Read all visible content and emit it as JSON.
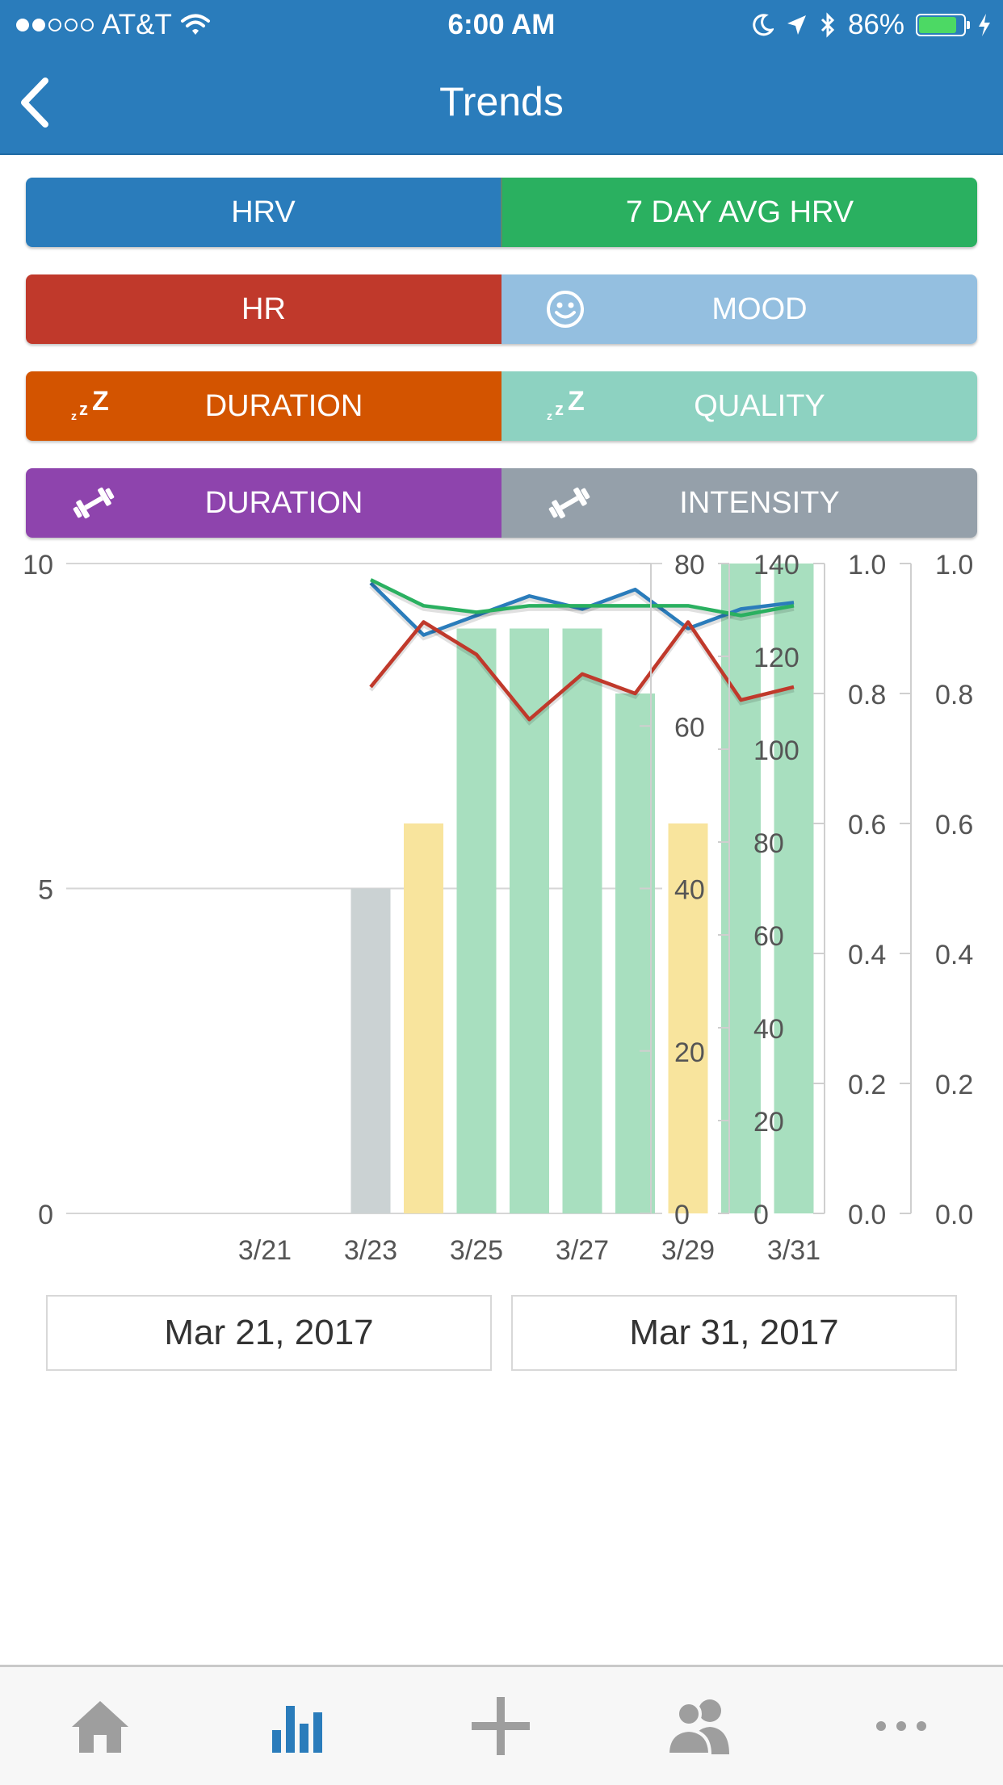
{
  "status_bar": {
    "carrier": "AT&T",
    "time": "6:00 AM",
    "battery": "86%",
    "battery_level": 0.86,
    "signal_bars_filled": 2,
    "signal_bars_total": 5
  },
  "nav": {
    "title": "Trends",
    "back_icon": "chevron-left-icon"
  },
  "toggles": [
    {
      "left": {
        "label": "HRV",
        "color": "#2a7cbb",
        "icon": ""
      },
      "right": {
        "label": "7 DAY AVG HRV",
        "color": "#2ab060",
        "icon": ""
      }
    },
    {
      "left": {
        "label": "HR",
        "color": "#c0392b",
        "icon": ""
      },
      "right": {
        "label": "MOOD",
        "color": "#94bfe0",
        "icon": "smiley-icon"
      }
    },
    {
      "left": {
        "label": "DURATION",
        "color": "#d35400",
        "icon": "sleep-zzz-icon"
      },
      "right": {
        "label": "QUALITY",
        "color": "#8dd2c1",
        "icon": "sleep-zzz-icon"
      }
    },
    {
      "left": {
        "label": "DURATION",
        "color": "#8e44ad",
        "icon": "dumbbell-icon"
      },
      "right": {
        "label": "INTENSITY",
        "color": "#95a0aa",
        "icon": "dumbbell-icon"
      }
    }
  ],
  "chart_data": {
    "type": "bar",
    "x": [
      "3/21",
      "3/22",
      "3/23",
      "3/24",
      "3/25",
      "3/26",
      "3/27",
      "3/28",
      "3/29",
      "3/30",
      "3/31"
    ],
    "x_tick_labels": [
      "3/21",
      "3/23",
      "3/25",
      "3/27",
      "3/29",
      "3/31"
    ],
    "y_axes": [
      {
        "ticks": [
          "0",
          "5",
          "10"
        ],
        "range": [
          0,
          10
        ]
      },
      {
        "ticks": [
          "0",
          "20",
          "40",
          "60",
          "80"
        ],
        "range": [
          0,
          80
        ]
      },
      {
        "ticks": [
          "0",
          "20",
          "40",
          "60",
          "80",
          "100",
          "120",
          "140"
        ],
        "range": [
          0,
          140
        ]
      },
      {
        "ticks": [
          "0.0",
          "0.2",
          "0.4",
          "0.6",
          "0.8",
          "1.0"
        ],
        "range": [
          0,
          1
        ]
      },
      {
        "ticks": [
          "0.0",
          "0.2",
          "0.4",
          "0.6",
          "0.8",
          "1.0"
        ],
        "range": [
          0,
          1
        ]
      }
    ],
    "bars": [
      {
        "x": "3/23",
        "value": 5,
        "color": "#cbd2d3"
      },
      {
        "x": "3/24",
        "value": 6,
        "color": "#f8e49d"
      },
      {
        "x": "3/25",
        "value": 9,
        "color": "#a8dfbf"
      },
      {
        "x": "3/26",
        "value": 9,
        "color": "#a8dfbf"
      },
      {
        "x": "3/27",
        "value": 9,
        "color": "#a8dfbf"
      },
      {
        "x": "3/28",
        "value": 8,
        "color": "#a8dfbf"
      },
      {
        "x": "3/29",
        "value": 6,
        "color": "#f8e49d"
      },
      {
        "x": "3/30",
        "value": 10,
        "color": "#a8dfbf"
      },
      {
        "x": "3/31",
        "value": 10,
        "color": "#a8dfbf"
      }
    ],
    "series": [
      {
        "axis": 0,
        "color": "#2a7cbb",
        "x": [
          "3/23",
          "3/24",
          "3/25",
          "3/26",
          "3/27",
          "3/28",
          "3/29",
          "3/30",
          "3/31"
        ],
        "values": [
          9.7,
          8.9,
          9.2,
          9.5,
          9.3,
          9.6,
          9.0,
          9.3,
          9.4
        ]
      },
      {
        "axis": 0,
        "color": "#2ab060",
        "x": [
          "3/23",
          "3/24",
          "3/25",
          "3/26",
          "3/27",
          "3/28",
          "3/29",
          "3/30",
          "3/31"
        ],
        "values": [
          9.75,
          9.35,
          9.25,
          9.35,
          9.35,
          9.35,
          9.35,
          9.2,
          9.35
        ]
      },
      {
        "axis": 0,
        "color": "#c0392b",
        "x": [
          "3/23",
          "3/24",
          "3/25",
          "3/26",
          "3/27",
          "3/28",
          "3/29",
          "3/30",
          "3/31"
        ],
        "values": [
          8.1,
          9.1,
          8.6,
          7.6,
          8.3,
          8.0,
          9.1,
          7.9,
          8.1
        ]
      }
    ],
    "grid": true,
    "legend": "none"
  },
  "date_range": {
    "start": "Mar 21, 2017",
    "end": "Mar 31, 2017"
  },
  "tabbar": [
    {
      "icon": "home-icon",
      "color": "#9e9e9e"
    },
    {
      "icon": "bar-chart-icon",
      "color": "#2a7cbb"
    },
    {
      "icon": "plus-icon",
      "color": "#9e9e9e"
    },
    {
      "icon": "people-icon",
      "color": "#9e9e9e"
    },
    {
      "icon": "more-icon",
      "color": "#9e9e9e"
    }
  ]
}
